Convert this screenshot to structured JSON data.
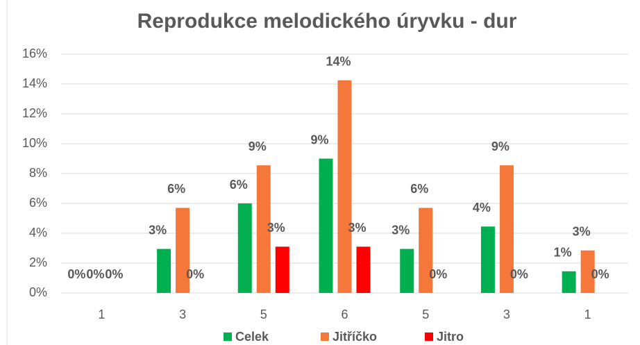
{
  "chart_data": {
    "type": "bar",
    "title": "Reprodukce melodického úryvku - dur",
    "categories": [
      "1",
      "3",
      "5",
      "6",
      "5",
      "3",
      "1"
    ],
    "series": [
      {
        "name": "Celek",
        "color": "#00b050",
        "values": [
          0,
          2.95,
          6.0,
          9.0,
          2.95,
          4.45,
          1.45
        ],
        "value_labels": [
          "0%",
          "3%",
          "6%",
          "9%",
          "3%",
          "4%",
          "1%"
        ]
      },
      {
        "name": "Jitříčko",
        "color": "#f5773a",
        "values": [
          0,
          5.7,
          8.55,
          14.25,
          5.7,
          8.55,
          2.85
        ],
        "value_labels": [
          "0%",
          "6%",
          "9%",
          "14%",
          "6%",
          "9%",
          "3%"
        ]
      },
      {
        "name": "Jitro",
        "color": "#ff0000",
        "values": [
          0,
          0,
          3.1,
          3.1,
          0,
          0,
          0
        ],
        "value_labels": [
          "0%",
          "0%",
          "3%",
          "3%",
          "0%",
          "0%",
          "0%"
        ]
      }
    ],
    "ylim": [
      0,
      16
    ],
    "yticks": [
      {
        "value": 0,
        "label": "0%"
      },
      {
        "value": 2,
        "label": "2%"
      },
      {
        "value": 4,
        "label": "4%"
      },
      {
        "value": 6,
        "label": "6%"
      },
      {
        "value": 8,
        "label": "8%"
      },
      {
        "value": 10,
        "label": "10%"
      },
      {
        "value": 12,
        "label": "12%"
      },
      {
        "value": 14,
        "label": "14%"
      },
      {
        "value": 16,
        "label": "16%"
      }
    ],
    "grid": true,
    "legend": "bottom"
  }
}
